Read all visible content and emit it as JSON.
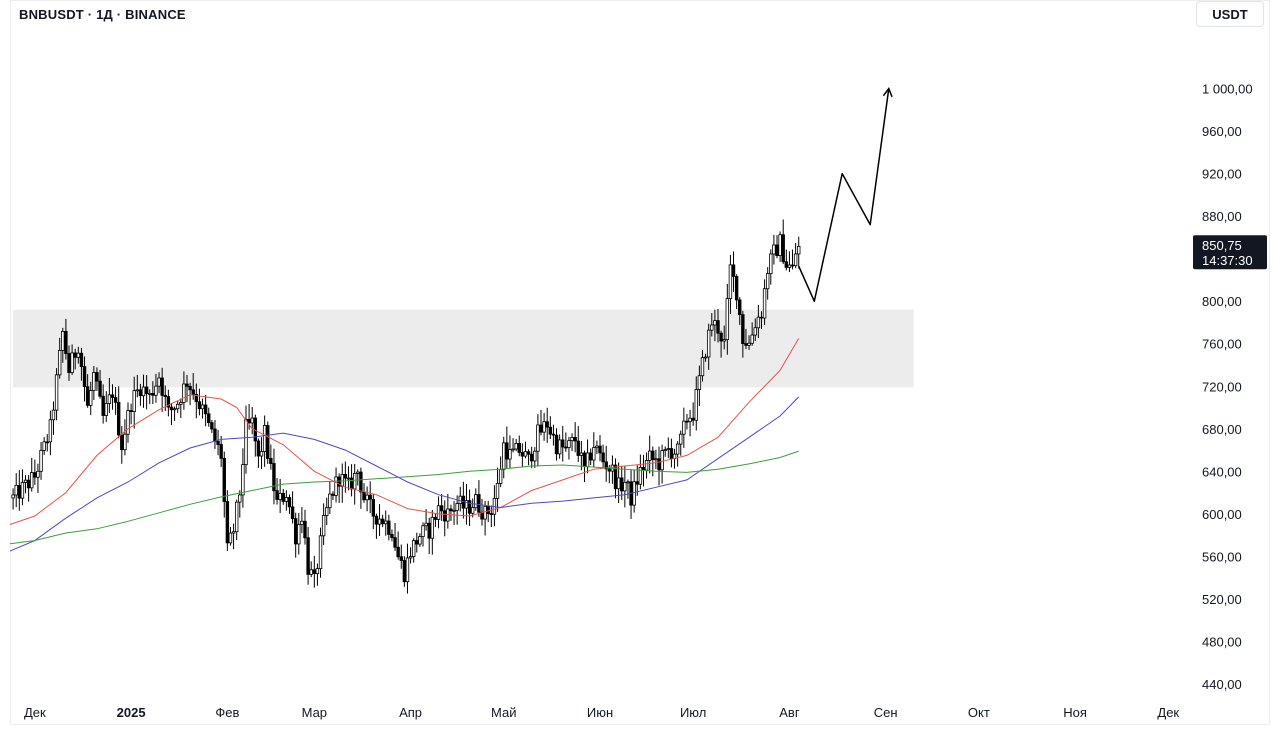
{
  "header": {
    "symbol_line": "BNBUSDT · 1Д · BINANCE",
    "currency_button": "USDT"
  },
  "price_tag": {
    "price": "850,75",
    "countdown": "14:37:30"
  },
  "colors": {
    "candle": "#000000",
    "ma_fast": "#e8534a",
    "ma_mid": "#4a4ac8",
    "ma_slow": "#3d9e3d",
    "zone": "#ececec",
    "tag_bg": "#131722"
  },
  "chart_data": {
    "type": "candlestick",
    "title": "BNBUSDT · 1Д · BINANCE",
    "y_axis": {
      "unit": "USDT",
      "ticks": [
        "1 000,00",
        "960,00",
        "920,00",
        "880,00",
        "800,00",
        "760,00",
        "720,00",
        "680,00",
        "640,00",
        "600,00",
        "560,00",
        "520,00",
        "480,00",
        "440,00"
      ],
      "tick_values": [
        1000,
        960,
        920,
        880,
        800,
        760,
        720,
        680,
        640,
        600,
        560,
        520,
        480,
        440
      ],
      "range": [
        425,
        1055
      ]
    },
    "x_axis": {
      "ticks": [
        {
          "label": "Дек",
          "day": 0,
          "bold": false
        },
        {
          "label": "2025",
          "day": 31,
          "bold": true
        },
        {
          "label": "Фев",
          "day": 62,
          "bold": false
        },
        {
          "label": "Мар",
          "day": 90,
          "bold": false
        },
        {
          "label": "Апр",
          "day": 121,
          "bold": false
        },
        {
          "label": "Май",
          "day": 151,
          "bold": false
        },
        {
          "label": "Июн",
          "day": 182,
          "bold": false
        },
        {
          "label": "Июл",
          "day": 212,
          "bold": false
        },
        {
          "label": "Авг",
          "day": 243,
          "bold": false
        },
        {
          "label": "Сен",
          "day": 274,
          "bold": false
        },
        {
          "label": "Окт",
          "day": 304,
          "bold": false
        },
        {
          "label": "Ноя",
          "day": 335,
          "bold": false
        },
        {
          "label": "Дек",
          "day": 365,
          "bold": false
        }
      ],
      "range": [
        -8,
        372
      ]
    },
    "keypoints": [
      [
        -7,
        615
      ],
      [
        0,
        635
      ],
      [
        5,
        680
      ],
      [
        9,
        770
      ],
      [
        11,
        735
      ],
      [
        14,
        760
      ],
      [
        17,
        700
      ],
      [
        19,
        730
      ],
      [
        22,
        690
      ],
      [
        25,
        715
      ],
      [
        28,
        665
      ],
      [
        31,
        705
      ],
      [
        34,
        720
      ],
      [
        37,
        710
      ],
      [
        40,
        730
      ],
      [
        43,
        695
      ],
      [
        46,
        705
      ],
      [
        49,
        725
      ],
      [
        52,
        710
      ],
      [
        55,
        690
      ],
      [
        57,
        675
      ],
      [
        60,
        655
      ],
      [
        62,
        565
      ],
      [
        64,
        585
      ],
      [
        66,
        620
      ],
      [
        68,
        680
      ],
      [
        70,
        685
      ],
      [
        72,
        650
      ],
      [
        74,
        675
      ],
      [
        76,
        640
      ],
      [
        78,
        610
      ],
      [
        81,
        620
      ],
      [
        84,
        580
      ],
      [
        86,
        600
      ],
      [
        88,
        550
      ],
      [
        90,
        535
      ],
      [
        93,
        590
      ],
      [
        95,
        615
      ],
      [
        98,
        635
      ],
      [
        101,
        625
      ],
      [
        104,
        640
      ],
      [
        106,
        615
      ],
      [
        109,
        600
      ],
      [
        112,
        595
      ],
      [
        115,
        585
      ],
      [
        117,
        560
      ],
      [
        119,
        545
      ],
      [
        121,
        565
      ],
      [
        124,
        580
      ],
      [
        127,
        585
      ],
      [
        130,
        605
      ],
      [
        133,
        600
      ],
      [
        136,
        610
      ],
      [
        139,
        605
      ],
      [
        142,
        612
      ],
      [
        145,
        600
      ],
      [
        147,
        605
      ],
      [
        149,
        625
      ],
      [
        151,
        665
      ],
      [
        153,
        655
      ],
      [
        156,
        660
      ],
      [
        159,
        650
      ],
      [
        162,
        675
      ],
      [
        165,
        685
      ],
      [
        168,
        665
      ],
      [
        171,
        660
      ],
      [
        174,
        670
      ],
      [
        177,
        640
      ],
      [
        180,
        665
      ],
      [
        183,
        650
      ],
      [
        186,
        640
      ],
      [
        188,
        625
      ],
      [
        190,
        630
      ],
      [
        192,
        615
      ],
      [
        195,
        640
      ],
      [
        198,
        652
      ],
      [
        201,
        648
      ],
      [
        204,
        660
      ],
      [
        207,
        658
      ],
      [
        210,
        690
      ],
      [
        212,
        695
      ],
      [
        214,
        725
      ],
      [
        216,
        755
      ],
      [
        218,
        780
      ],
      [
        220,
        775
      ],
      [
        222,
        760
      ],
      [
        224,
        830
      ],
      [
        226,
        810
      ],
      [
        228,
        765
      ],
      [
        230,
        760
      ],
      [
        232,
        780
      ],
      [
        234,
        790
      ],
      [
        236,
        830
      ],
      [
        238,
        845
      ],
      [
        240,
        855
      ],
      [
        242,
        835
      ],
      [
        244,
        830
      ],
      [
        245,
        845
      ],
      [
        246,
        850
      ]
    ],
    "candle_days": [
      -7,
      246
    ],
    "moving_averages": [
      {
        "color_key": "ma_fast",
        "points": [
          [
            -8,
            590
          ],
          [
            0,
            598
          ],
          [
            10,
            620
          ],
          [
            20,
            655
          ],
          [
            30,
            680
          ],
          [
            40,
            698
          ],
          [
            50,
            712
          ],
          [
            60,
            708
          ],
          [
            65,
            700
          ],
          [
            70,
            680
          ],
          [
            80,
            665
          ],
          [
            90,
            640
          ],
          [
            100,
            625
          ],
          [
            110,
            618
          ],
          [
            120,
            605
          ],
          [
            130,
            600
          ],
          [
            140,
            598
          ],
          [
            150,
            606
          ],
          [
            160,
            622
          ],
          [
            170,
            632
          ],
          [
            180,
            642
          ],
          [
            190,
            645
          ],
          [
            200,
            648
          ],
          [
            210,
            655
          ],
          [
            220,
            672
          ],
          [
            230,
            705
          ],
          [
            240,
            735
          ],
          [
            246,
            765
          ]
        ]
      },
      {
        "color_key": "ma_mid",
        "points": [
          [
            -8,
            565
          ],
          [
            0,
            575
          ],
          [
            10,
            596
          ],
          [
            20,
            615
          ],
          [
            30,
            630
          ],
          [
            40,
            648
          ],
          [
            50,
            662
          ],
          [
            60,
            670
          ],
          [
            70,
            672
          ],
          [
            80,
            676
          ],
          [
            90,
            670
          ],
          [
            100,
            660
          ],
          [
            110,
            645
          ],
          [
            120,
            630
          ],
          [
            130,
            618
          ],
          [
            140,
            610
          ],
          [
            150,
            606
          ],
          [
            160,
            610
          ],
          [
            170,
            612
          ],
          [
            180,
            615
          ],
          [
            190,
            618
          ],
          [
            200,
            625
          ],
          [
            210,
            632
          ],
          [
            220,
            652
          ],
          [
            230,
            672
          ],
          [
            240,
            692
          ],
          [
            246,
            710
          ]
        ]
      },
      {
        "color_key": "ma_slow",
        "points": [
          [
            -8,
            572
          ],
          [
            0,
            575
          ],
          [
            10,
            582
          ],
          [
            20,
            586
          ],
          [
            30,
            593
          ],
          [
            40,
            601
          ],
          [
            50,
            609
          ],
          [
            60,
            616
          ],
          [
            70,
            622
          ],
          [
            80,
            628
          ],
          [
            90,
            630
          ],
          [
            100,
            631
          ],
          [
            110,
            633
          ],
          [
            120,
            635
          ],
          [
            130,
            637
          ],
          [
            140,
            640
          ],
          [
            150,
            642
          ],
          [
            160,
            645
          ],
          [
            170,
            646
          ],
          [
            180,
            644
          ],
          [
            190,
            642
          ],
          [
            200,
            640
          ],
          [
            210,
            639
          ],
          [
            220,
            642
          ],
          [
            230,
            647
          ],
          [
            240,
            653
          ],
          [
            246,
            659
          ]
        ]
      }
    ],
    "zone": {
      "from_day": -7,
      "to_day": 283,
      "low": 719,
      "high": 792
    },
    "projection": [
      [
        246,
        833
      ],
      [
        251,
        800
      ],
      [
        260,
        920
      ],
      [
        269,
        872
      ],
      [
        275,
        1000
      ]
    ]
  }
}
